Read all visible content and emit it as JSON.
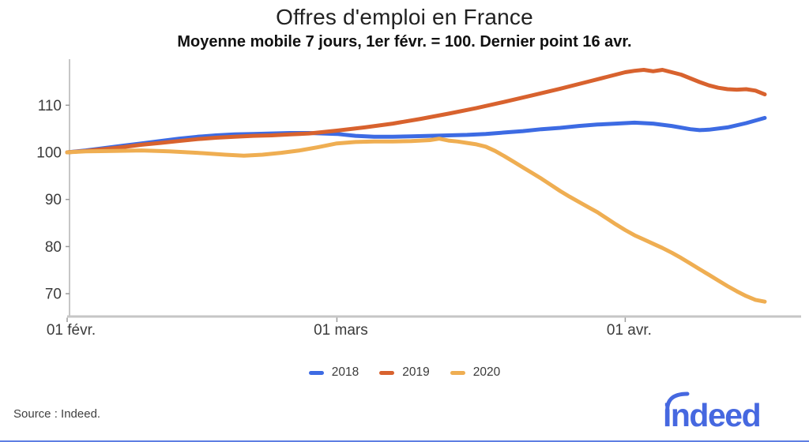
{
  "header": {
    "title": "Offres d'emploi en France",
    "subtitle": "Moyenne mobile 7 jours, 1er févr. = 100. Dernier point 16 avr."
  },
  "chart_data": {
    "type": "line",
    "title": "Offres d'emploi en France",
    "subtitle": "Moyenne mobile 7 jours, 1er févr. = 100. Dernier point 16 avr.",
    "xlabel": "",
    "ylabel": "",
    "x_unit": "days since 01 févr.",
    "xlim": [
      0,
      75
    ],
    "ylim": [
      65,
      120
    ],
    "grid": false,
    "legend_position": "bottom",
    "y_ticks": [
      110,
      100,
      90,
      80,
      70
    ],
    "x_ticks": [
      {
        "day": 0,
        "label": "01 févr."
      },
      {
        "day": 29,
        "label": "01 mars"
      },
      {
        "day": 60,
        "label": "01 avr."
      }
    ],
    "series": [
      {
        "name": "2018",
        "color": "#3D6BE3",
        "x": [
          0,
          2,
          4,
          6,
          8,
          10,
          12,
          14,
          16,
          18,
          20,
          22,
          24,
          26,
          29,
          31,
          33,
          35,
          37,
          39,
          41,
          43,
          45,
          47,
          49,
          51,
          53,
          55,
          57,
          59,
          61,
          63,
          65,
          67,
          68,
          69,
          71,
          73,
          75
        ],
        "values": [
          100,
          100.4,
          100.9,
          101.4,
          101.9,
          102.4,
          102.9,
          103.3,
          103.6,
          103.8,
          103.9,
          104,
          104.1,
          104.1,
          103.9,
          103.5,
          103.3,
          103.3,
          103.4,
          103.5,
          103.6,
          103.7,
          103.9,
          104.2,
          104.5,
          104.9,
          105.2,
          105.6,
          105.9,
          106.1,
          106.3,
          106.1,
          105.6,
          104.9,
          104.7,
          104.8,
          105.3,
          106.2,
          107.3
        ]
      },
      {
        "name": "2019",
        "color": "#D8622E",
        "x": [
          0,
          2,
          4,
          6,
          8,
          10,
          12,
          14,
          16,
          18,
          20,
          22,
          24,
          26,
          29,
          32,
          35,
          38,
          41,
          44,
          47,
          50,
          53,
          56,
          58,
          60,
          61,
          62,
          63,
          64,
          66,
          68,
          69,
          70,
          71,
          72,
          73,
          74,
          75
        ],
        "values": [
          100,
          100.3,
          100.7,
          101.1,
          101.6,
          102,
          102.4,
          102.8,
          103.1,
          103.3,
          103.5,
          103.6,
          103.8,
          104,
          104.6,
          105.3,
          106.1,
          107.1,
          108.2,
          109.4,
          110.7,
          112.1,
          113.5,
          115,
          116,
          117,
          117.3,
          117.5,
          117.2,
          117.5,
          116.5,
          114.9,
          114.2,
          113.7,
          113.4,
          113.3,
          113.4,
          113.1,
          112.3
        ]
      },
      {
        "name": "2020",
        "color": "#EFAE52",
        "x": [
          0,
          2,
          5,
          8,
          11,
          14,
          17,
          19,
          21,
          23,
          25,
          27,
          29,
          31,
          33,
          35,
          37,
          39,
          40,
          41,
          42,
          43,
          44,
          45,
          46,
          47,
          48,
          49,
          50,
          51,
          52,
          53,
          54,
          55,
          56,
          57,
          58,
          59,
          60,
          61,
          62,
          63,
          64,
          65,
          66,
          67,
          68,
          69,
          70,
          71,
          72,
          73,
          74,
          75
        ],
        "values": [
          100,
          100.2,
          100.3,
          100.4,
          100.2,
          99.9,
          99.5,
          99.3,
          99.5,
          99.9,
          100.4,
          101.1,
          101.9,
          102.2,
          102.3,
          102.3,
          102.4,
          102.6,
          102.9,
          102.5,
          102.3,
          102,
          101.7,
          101.2,
          100.3,
          99.2,
          98,
          96.8,
          95.6,
          94.4,
          93.1,
          91.8,
          90.6,
          89.5,
          88.4,
          87.3,
          86,
          84.7,
          83.5,
          82.4,
          81.5,
          80.6,
          79.7,
          78.7,
          77.6,
          76.4,
          75.2,
          74,
          72.8,
          71.6,
          70.5,
          69.5,
          68.7,
          68.3
        ]
      }
    ]
  },
  "footer": {
    "source": "Source : Indeed.",
    "logo_text": "indeed"
  },
  "colors": {
    "axis_line": "#c6c6c6",
    "tick_mark": "#9a9a9a",
    "tick_label": "#3b3b3b",
    "logo_blue": "#4668E0",
    "bottom_bar": "#5f7fe3"
  }
}
